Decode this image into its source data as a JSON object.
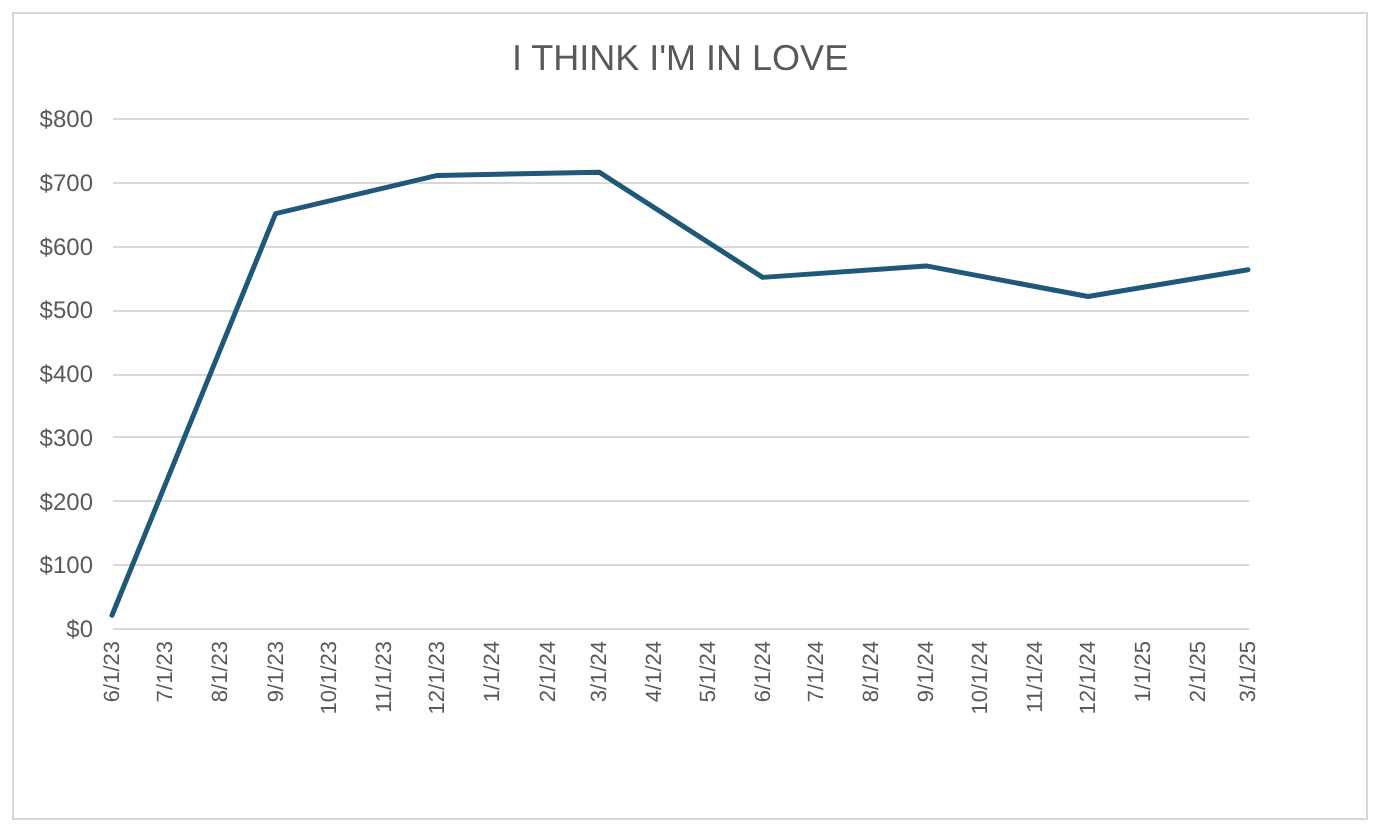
{
  "chart_data": {
    "type": "line",
    "title": "I THINK I'M IN LOVE",
    "x": [
      "2023-06-01",
      "2023-09-01",
      "2023-12-01",
      "2024-03-01",
      "2024-06-01",
      "2024-09-01",
      "2024-12-01",
      "2025-03-01"
    ],
    "series": [
      {
        "color": "#1f5878",
        "values": [
          20,
          650,
          710,
          715,
          550,
          568,
          520,
          562
        ]
      }
    ],
    "xlim": [
      "2023-06-01",
      "2025-03-01"
    ],
    "xticks": [
      {
        "value": "2023-06-01",
        "label": "6/1/23"
      },
      {
        "value": "2023-07-01",
        "label": "7/1/23"
      },
      {
        "value": "2023-08-01",
        "label": "8/1/23"
      },
      {
        "value": "2023-09-01",
        "label": "9/1/23"
      },
      {
        "value": "2023-10-01",
        "label": "10/1/23"
      },
      {
        "value": "2023-11-01",
        "label": "11/1/23"
      },
      {
        "value": "2023-12-01",
        "label": "12/1/23"
      },
      {
        "value": "2024-01-01",
        "label": "1/1/24"
      },
      {
        "value": "2024-02-01",
        "label": "2/1/24"
      },
      {
        "value": "2024-03-01",
        "label": "3/1/24"
      },
      {
        "value": "2024-04-01",
        "label": "4/1/24"
      },
      {
        "value": "2024-05-01",
        "label": "5/1/24"
      },
      {
        "value": "2024-06-01",
        "label": "6/1/24"
      },
      {
        "value": "2024-07-01",
        "label": "7/1/24"
      },
      {
        "value": "2024-08-01",
        "label": "8/1/24"
      },
      {
        "value": "2024-09-01",
        "label": "9/1/24"
      },
      {
        "value": "2024-10-01",
        "label": "10/1/24"
      },
      {
        "value": "2024-11-01",
        "label": "11/1/24"
      },
      {
        "value": "2024-12-01",
        "label": "12/1/24"
      },
      {
        "value": "2025-01-01",
        "label": "1/1/25"
      },
      {
        "value": "2025-02-01",
        "label": "2/1/25"
      },
      {
        "value": "2025-03-01",
        "label": "3/1/25"
      }
    ],
    "ylim": [
      0,
      800
    ],
    "yticks": [
      {
        "value": 0,
        "label": "$0"
      },
      {
        "value": 100,
        "label": "$100"
      },
      {
        "value": 200,
        "label": "$200"
      },
      {
        "value": 300,
        "label": "$300"
      },
      {
        "value": 400,
        "label": "$400"
      },
      {
        "value": 500,
        "label": "$500"
      },
      {
        "value": 600,
        "label": "$600"
      },
      {
        "value": 700,
        "label": "$700"
      },
      {
        "value": 800,
        "label": "$800"
      }
    ],
    "grid": "y",
    "line_style": "solid",
    "marker": "none"
  }
}
